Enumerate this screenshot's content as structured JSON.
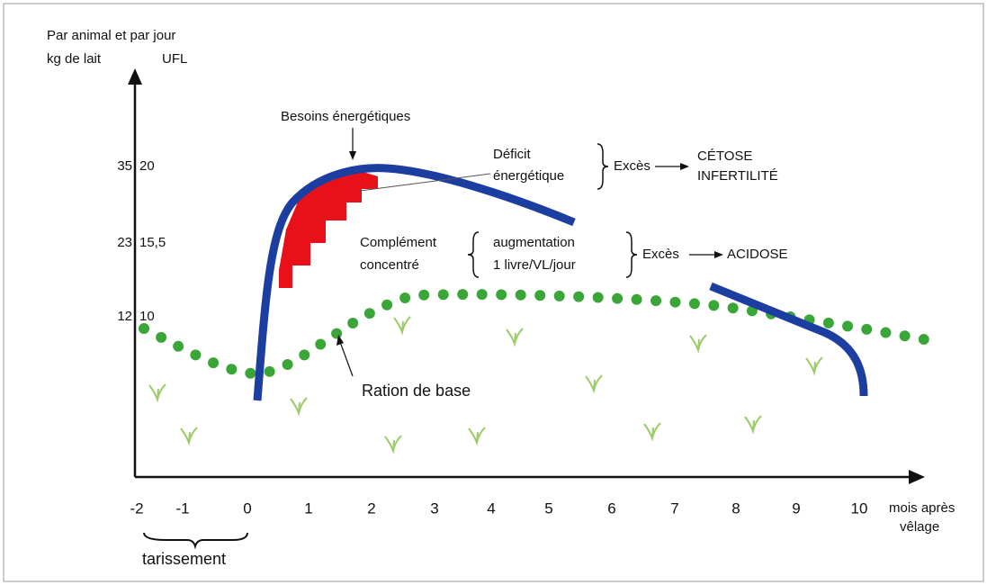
{
  "axis": {
    "y_title": [
      "Par animal et par jour",
      "kg de lait",
      "UFL"
    ],
    "x_title": [
      "mois après",
      "vêlage"
    ],
    "x_ticks": [
      "-2",
      "-1",
      "0",
      "1",
      "2",
      "3",
      "4",
      "5",
      "6",
      "7",
      "8",
      "9",
      "10"
    ],
    "y_ticks_milk": [
      "35",
      "23",
      "12"
    ],
    "y_ticks_ufl": [
      "20",
      "15,5",
      "10"
    ]
  },
  "annotations": {
    "needs": "Besoins énergétiques",
    "deficit": [
      "Déficit",
      "énergétique"
    ],
    "excess_1": "Excès",
    "outcome_1": [
      "CÉTOSE",
      "INFERTILITÉ"
    ],
    "supplement": [
      "Complément",
      "concentré"
    ],
    "increase": [
      "augmentation",
      "1 livre/VL/jour"
    ],
    "excess_2": "Excès",
    "outcome_2": "ACIDOSE",
    "base": "Ration de base",
    "dry": "tarissement"
  }
}
